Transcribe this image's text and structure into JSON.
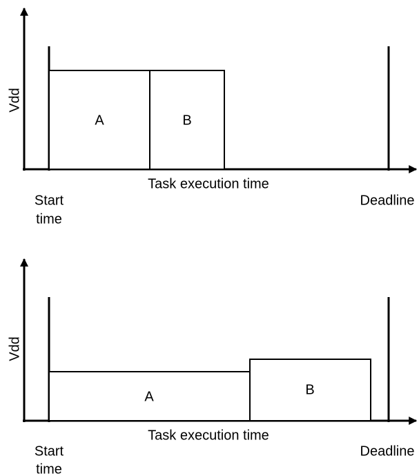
{
  "panels": [
    {
      "y_label": "Vdd",
      "x_label": "Task execution time",
      "start_label": [
        "Start",
        "time"
      ],
      "deadline_label": "Deadline",
      "blocks": [
        "A",
        "B"
      ]
    },
    {
      "y_label": "Vdd",
      "x_label": "Task execution time",
      "start_label": [
        "Start",
        "time"
      ],
      "deadline_label": "Deadline",
      "blocks": [
        "A",
        "B"
      ]
    }
  ]
}
